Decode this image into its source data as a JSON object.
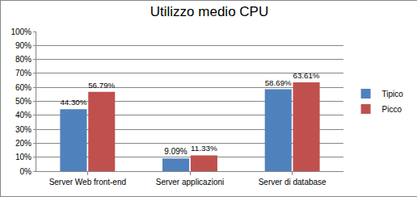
{
  "chart_data": {
    "type": "bar",
    "title": "Utilizzo medio CPU",
    "categories": [
      "Server Web front-end",
      "Server applicazioni",
      "Server di database"
    ],
    "series": [
      {
        "name": "Tipico",
        "color": "#4f81bd",
        "values": [
          44.3,
          9.09,
          58.69
        ],
        "value_labels": [
          "44.30%",
          "9.09%",
          "58.69%"
        ]
      },
      {
        "name": "Picco",
        "color": "#c0504d",
        "values": [
          56.79,
          11.33,
          63.61
        ],
        "value_labels": [
          "56.79%",
          "11.33%",
          "63.61%"
        ]
      }
    ],
    "ylim": [
      0,
      100
    ],
    "yticks": [
      {
        "value": 0,
        "label": "0%"
      },
      {
        "value": 10,
        "label": "10%"
      },
      {
        "value": 20,
        "label": "20%"
      },
      {
        "value": 30,
        "label": "30%"
      },
      {
        "value": 40,
        "label": "40%"
      },
      {
        "value": 50,
        "label": "50%"
      },
      {
        "value": 60,
        "label": "60%"
      },
      {
        "value": 70,
        "label": "70%"
      },
      {
        "value": 80,
        "label": "80%"
      },
      {
        "value": 90,
        "label": "90%"
      },
      {
        "value": 100,
        "label": "100%"
      }
    ],
    "grid": true,
    "legend": "right",
    "data_labels": true
  }
}
